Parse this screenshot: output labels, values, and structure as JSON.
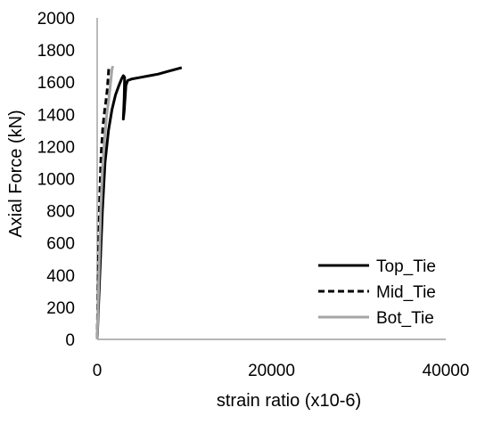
{
  "chart_data": {
    "type": "line",
    "title": "",
    "xlabel": "strain ratio (x10-6)",
    "ylabel": "Axial Force (kN)",
    "xlim": [
      0,
      40000
    ],
    "ylim": [
      0,
      2000
    ],
    "x_ticks": [
      0,
      20000,
      40000
    ],
    "y_ticks": [
      0,
      200,
      400,
      600,
      800,
      1000,
      1200,
      1400,
      1600,
      1800,
      2000
    ],
    "grid": false,
    "legend_position": "bottom-right",
    "series": [
      {
        "name": "Top_Tie",
        "color": "#000000",
        "style": "solid",
        "points": [
          [
            0,
            0
          ],
          [
            300,
            400
          ],
          [
            600,
            800
          ],
          [
            900,
            1100
          ],
          [
            1300,
            1300
          ],
          [
            1700,
            1430
          ],
          [
            2100,
            1520
          ],
          [
            2500,
            1580
          ],
          [
            2800,
            1620
          ],
          [
            3000,
            1640
          ],
          [
            3150,
            1630
          ],
          [
            3100,
            1500
          ],
          [
            3000,
            1370
          ],
          [
            3100,
            1420
          ],
          [
            3300,
            1580
          ],
          [
            3500,
            1610
          ],
          [
            4000,
            1620
          ],
          [
            5000,
            1630
          ],
          [
            6000,
            1640
          ],
          [
            7000,
            1650
          ],
          [
            8000,
            1665
          ],
          [
            9000,
            1680
          ],
          [
            9700,
            1690
          ]
        ]
      },
      {
        "name": "Mid_Tie",
        "color": "#000000",
        "style": "dashed",
        "points": [
          [
            0,
            0
          ],
          [
            150,
            500
          ],
          [
            300,
            900
          ],
          [
            450,
            1150
          ],
          [
            650,
            1320
          ],
          [
            850,
            1420
          ],
          [
            1000,
            1480
          ],
          [
            1150,
            1550
          ],
          [
            1250,
            1620
          ],
          [
            1350,
            1700
          ]
        ]
      },
      {
        "name": "Bot_Tie",
        "color": "#a6a6a6",
        "style": "solid",
        "points": [
          [
            0,
            0
          ],
          [
            200,
            400
          ],
          [
            400,
            800
          ],
          [
            600,
            1050
          ],
          [
            850,
            1250
          ],
          [
            1100,
            1400
          ],
          [
            1350,
            1500
          ],
          [
            1550,
            1600
          ],
          [
            1700,
            1680
          ],
          [
            1800,
            1700
          ]
        ]
      }
    ]
  }
}
